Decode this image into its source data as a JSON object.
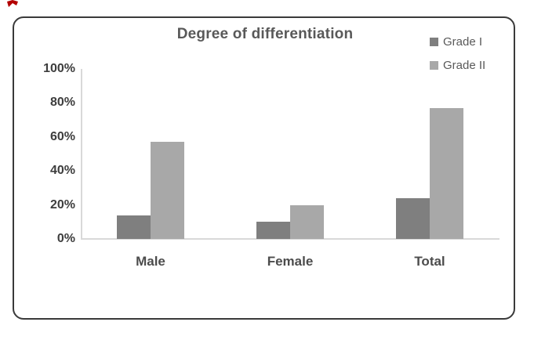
{
  "chart_data": {
    "type": "bar",
    "title": "Degree of differentiation",
    "categories": [
      "Male",
      "Female",
      "Total"
    ],
    "series": [
      {
        "name": "Grade I",
        "color": "#7f7f7f",
        "values": [
          14,
          10,
          24
        ]
      },
      {
        "name": "Grade II",
        "color": "#a8a8a8",
        "values": [
          57,
          20,
          77
        ]
      }
    ],
    "xlabel": "",
    "ylabel": "",
    "ylim": [
      0,
      100
    ],
    "ytick_step": 20,
    "ytick_suffix": "%",
    "grid": false,
    "legend_position": "top-right"
  },
  "colors": {
    "card_border": "#3a3a3a",
    "title_text": "#595959",
    "legend_text": "#595959",
    "ytick_text": "#3d3d3d",
    "xtick_text": "#4c4c4c",
    "axis_line": "#d9d9d9",
    "red_mark": "#b30000"
  }
}
